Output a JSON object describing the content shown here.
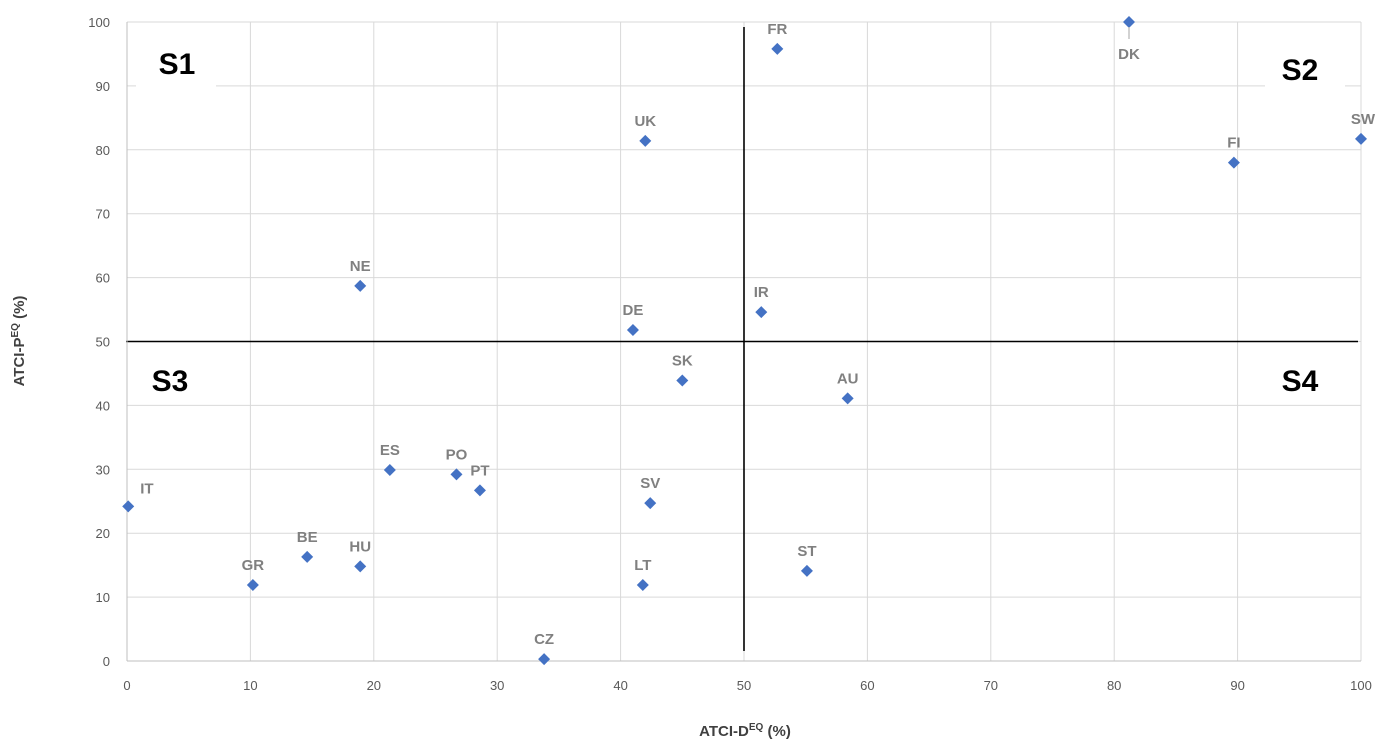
{
  "chart_data": {
    "type": "scatter",
    "xlabel": "ATCI-D",
    "xlabel_sup": "EQ",
    "xlabel_unit": " (%)",
    "ylabel": "ATCI-P",
    "ylabel_sup": "EQ",
    "ylabel_unit": " (%)",
    "xlim": [
      0,
      100
    ],
    "ylim": [
      0,
      100
    ],
    "x_ticks": [
      0,
      10,
      20,
      30,
      40,
      50,
      60,
      70,
      80,
      90,
      100
    ],
    "y_ticks": [
      0,
      10,
      20,
      30,
      40,
      50,
      60,
      70,
      80,
      90,
      100
    ],
    "grid": true,
    "marker_color": "#4472c4",
    "divider_x": 50,
    "divider_y": 50,
    "quadrants": [
      {
        "label": "S1",
        "position": "top-left"
      },
      {
        "label": "S2",
        "position": "top-right"
      },
      {
        "label": "S3",
        "position": "bottom-left"
      },
      {
        "label": "S4",
        "position": "bottom-right"
      }
    ],
    "points": [
      {
        "label": "DK",
        "x": 81.2,
        "y": 100,
        "label_pos": "below"
      },
      {
        "label": "FR",
        "x": 52.7,
        "y": 95.8,
        "label_pos": "above"
      },
      {
        "label": "SW",
        "x": 100,
        "y": 81.7,
        "label_pos": "above"
      },
      {
        "label": "UK",
        "x": 42.0,
        "y": 81.4,
        "label_pos": "above"
      },
      {
        "label": "FI",
        "x": 89.7,
        "y": 78.0,
        "label_pos": "above"
      },
      {
        "label": "NE",
        "x": 18.9,
        "y": 58.7,
        "label_pos": "above"
      },
      {
        "label": "IR",
        "x": 51.4,
        "y": 54.6,
        "label_pos": "above"
      },
      {
        "label": "DE",
        "x": 41.0,
        "y": 51.8,
        "label_pos": "above"
      },
      {
        "label": "SK",
        "x": 45.0,
        "y": 43.9,
        "label_pos": "above"
      },
      {
        "label": "AU",
        "x": 58.4,
        "y": 41.1,
        "label_pos": "above"
      },
      {
        "label": "ES",
        "x": 21.3,
        "y": 29.9,
        "label_pos": "above"
      },
      {
        "label": "PO",
        "x": 26.7,
        "y": 29.2,
        "label_pos": "above"
      },
      {
        "label": "PT",
        "x": 28.6,
        "y": 26.7,
        "label_pos": "above"
      },
      {
        "label": "SV",
        "x": 42.4,
        "y": 24.7,
        "label_pos": "above"
      },
      {
        "label": "IT",
        "x": 0.1,
        "y": 24.2,
        "label_pos": "above-right"
      },
      {
        "label": "BE",
        "x": 14.6,
        "y": 16.3,
        "label_pos": "above"
      },
      {
        "label": "HU",
        "x": 18.9,
        "y": 14.8,
        "label_pos": "above"
      },
      {
        "label": "ST",
        "x": 55.1,
        "y": 14.1,
        "label_pos": "above"
      },
      {
        "label": "GR",
        "x": 10.2,
        "y": 11.9,
        "label_pos": "above"
      },
      {
        "label": "LT",
        "x": 41.8,
        "y": 11.9,
        "label_pos": "above"
      },
      {
        "label": "CZ",
        "x": 33.8,
        "y": 0.3,
        "label_pos": "above"
      }
    ]
  }
}
